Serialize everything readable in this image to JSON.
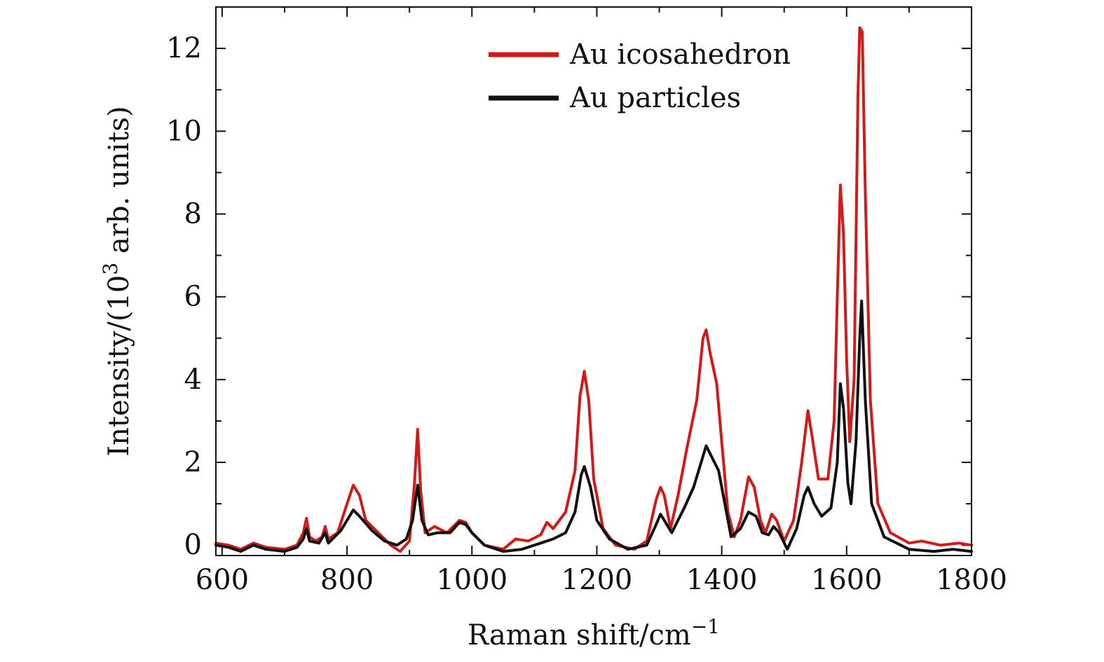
{
  "chart_data": {
    "type": "line",
    "xlabel": "Raman shift/cm",
    "xlabel_sup": "−1",
    "ylabel": "Intensity/(10",
    "ylabel_sup": "3",
    "ylabel_tail": " arb. units)",
    "xlim": [
      590,
      1800
    ],
    "ylim": [
      -0.25,
      13
    ],
    "xticks": [
      600,
      800,
      1000,
      1200,
      1400,
      1600,
      1800
    ],
    "yticks": [
      0,
      2,
      4,
      6,
      8,
      10,
      12
    ],
    "legend_placement": "top-right",
    "series": [
      {
        "name": "Au icosahedron",
        "color": "#d11a1a",
        "points": [
          [
            590,
            0.05
          ],
          [
            610,
            0.0
          ],
          [
            630,
            -0.1
          ],
          [
            650,
            0.05
          ],
          [
            670,
            -0.05
          ],
          [
            700,
            -0.1
          ],
          [
            720,
            0.0
          ],
          [
            730,
            0.3
          ],
          [
            735,
            0.65
          ],
          [
            740,
            0.2
          ],
          [
            750,
            0.1
          ],
          [
            760,
            0.2
          ],
          [
            765,
            0.45
          ],
          [
            770,
            0.15
          ],
          [
            785,
            0.3
          ],
          [
            800,
            1.0
          ],
          [
            810,
            1.45
          ],
          [
            820,
            1.2
          ],
          [
            830,
            0.6
          ],
          [
            850,
            0.3
          ],
          [
            870,
            0.0
          ],
          [
            885,
            -0.15
          ],
          [
            900,
            0.1
          ],
          [
            908,
            1.5
          ],
          [
            913,
            2.8
          ],
          [
            918,
            1.3
          ],
          [
            925,
            0.3
          ],
          [
            940,
            0.45
          ],
          [
            960,
            0.3
          ],
          [
            980,
            0.6
          ],
          [
            990,
            0.55
          ],
          [
            1000,
            0.3
          ],
          [
            1020,
            0.0
          ],
          [
            1050,
            -0.1
          ],
          [
            1070,
            0.15
          ],
          [
            1090,
            0.1
          ],
          [
            1110,
            0.25
          ],
          [
            1120,
            0.55
          ],
          [
            1130,
            0.4
          ],
          [
            1150,
            0.8
          ],
          [
            1165,
            1.8
          ],
          [
            1173,
            3.6
          ],
          [
            1180,
            4.2
          ],
          [
            1187,
            3.5
          ],
          [
            1195,
            1.6
          ],
          [
            1210,
            0.4
          ],
          [
            1230,
            0.0
          ],
          [
            1260,
            -0.1
          ],
          [
            1280,
            0.1
          ],
          [
            1295,
            1.1
          ],
          [
            1302,
            1.4
          ],
          [
            1308,
            1.2
          ],
          [
            1318,
            0.4
          ],
          [
            1330,
            1.2
          ],
          [
            1345,
            2.4
          ],
          [
            1360,
            3.5
          ],
          [
            1370,
            5.0
          ],
          [
            1375,
            5.2
          ],
          [
            1382,
            4.6
          ],
          [
            1392,
            3.9
          ],
          [
            1400,
            2.5
          ],
          [
            1410,
            0.8
          ],
          [
            1420,
            0.2
          ],
          [
            1430,
            0.6
          ],
          [
            1443,
            1.65
          ],
          [
            1452,
            1.4
          ],
          [
            1462,
            0.6
          ],
          [
            1470,
            0.3
          ],
          [
            1480,
            0.75
          ],
          [
            1488,
            0.6
          ],
          [
            1500,
            0.1
          ],
          [
            1515,
            0.6
          ],
          [
            1528,
            2.0
          ],
          [
            1538,
            3.25
          ],
          [
            1545,
            2.6
          ],
          [
            1555,
            1.6
          ],
          [
            1570,
            1.6
          ],
          [
            1580,
            3.0
          ],
          [
            1585,
            6.0
          ],
          [
            1590,
            8.7
          ],
          [
            1595,
            7.5
          ],
          [
            1600,
            4.5
          ],
          [
            1605,
            2.5
          ],
          [
            1612,
            4.0
          ],
          [
            1618,
            10.8
          ],
          [
            1621,
            12.5
          ],
          [
            1625,
            12.4
          ],
          [
            1630,
            8.5
          ],
          [
            1638,
            3.5
          ],
          [
            1650,
            1.0
          ],
          [
            1670,
            0.3
          ],
          [
            1700,
            0.05
          ],
          [
            1720,
            0.1
          ],
          [
            1750,
            0.0
          ],
          [
            1780,
            0.05
          ],
          [
            1800,
            0.0
          ]
        ]
      },
      {
        "name": "Au particles",
        "color": "#111111",
        "points": [
          [
            590,
            0.0
          ],
          [
            610,
            -0.05
          ],
          [
            630,
            -0.15
          ],
          [
            650,
            0.0
          ],
          [
            670,
            -0.1
          ],
          [
            700,
            -0.15
          ],
          [
            720,
            -0.05
          ],
          [
            730,
            0.15
          ],
          [
            735,
            0.4
          ],
          [
            740,
            0.1
          ],
          [
            755,
            0.05
          ],
          [
            765,
            0.3
          ],
          [
            770,
            0.05
          ],
          [
            790,
            0.35
          ],
          [
            810,
            0.85
          ],
          [
            820,
            0.7
          ],
          [
            840,
            0.35
          ],
          [
            860,
            0.1
          ],
          [
            880,
            0.0
          ],
          [
            895,
            0.15
          ],
          [
            905,
            0.6
          ],
          [
            913,
            1.45
          ],
          [
            920,
            0.6
          ],
          [
            930,
            0.25
          ],
          [
            945,
            0.3
          ],
          [
            965,
            0.3
          ],
          [
            980,
            0.55
          ],
          [
            990,
            0.5
          ],
          [
            1000,
            0.3
          ],
          [
            1020,
            0.0
          ],
          [
            1050,
            -0.15
          ],
          [
            1080,
            -0.1
          ],
          [
            1110,
            0.05
          ],
          [
            1130,
            0.15
          ],
          [
            1150,
            0.3
          ],
          [
            1165,
            0.8
          ],
          [
            1175,
            1.7
          ],
          [
            1180,
            1.9
          ],
          [
            1190,
            1.4
          ],
          [
            1200,
            0.6
          ],
          [
            1220,
            0.15
          ],
          [
            1250,
            -0.1
          ],
          [
            1280,
            0.0
          ],
          [
            1295,
            0.5
          ],
          [
            1302,
            0.75
          ],
          [
            1312,
            0.5
          ],
          [
            1320,
            0.3
          ],
          [
            1340,
            0.9
          ],
          [
            1355,
            1.4
          ],
          [
            1365,
            1.9
          ],
          [
            1375,
            2.4
          ],
          [
            1385,
            2.1
          ],
          [
            1395,
            1.8
          ],
          [
            1405,
            1.0
          ],
          [
            1415,
            0.2
          ],
          [
            1430,
            0.4
          ],
          [
            1443,
            0.8
          ],
          [
            1455,
            0.7
          ],
          [
            1465,
            0.3
          ],
          [
            1475,
            0.25
          ],
          [
            1483,
            0.45
          ],
          [
            1492,
            0.3
          ],
          [
            1505,
            -0.1
          ],
          [
            1520,
            0.4
          ],
          [
            1532,
            1.2
          ],
          [
            1538,
            1.4
          ],
          [
            1548,
            1.0
          ],
          [
            1560,
            0.7
          ],
          [
            1575,
            0.9
          ],
          [
            1585,
            2.0
          ],
          [
            1590,
            3.9
          ],
          [
            1595,
            3.3
          ],
          [
            1602,
            1.5
          ],
          [
            1607,
            1.0
          ],
          [
            1615,
            2.5
          ],
          [
            1621,
            5.0
          ],
          [
            1624,
            5.9
          ],
          [
            1630,
            3.5
          ],
          [
            1640,
            1.0
          ],
          [
            1660,
            0.2
          ],
          [
            1700,
            -0.1
          ],
          [
            1740,
            -0.15
          ],
          [
            1770,
            -0.1
          ],
          [
            1800,
            -0.15
          ]
        ]
      }
    ]
  }
}
